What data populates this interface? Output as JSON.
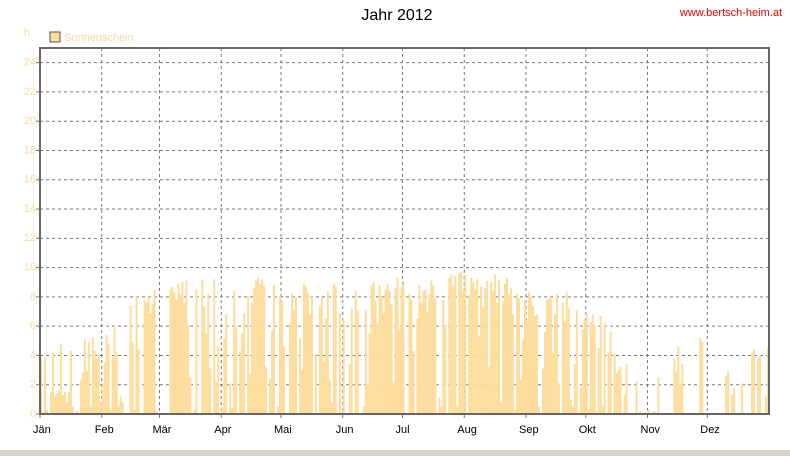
{
  "chart_data": {
    "type": "bar",
    "title": "Jahr 2012",
    "source": "www.bertsch-heim.at",
    "y_label": "h",
    "categories": [
      "Jän",
      null,
      null,
      null,
      null,
      null,
      null,
      null,
      null,
      null,
      null,
      null,
      null,
      null,
      null,
      null,
      null,
      null,
      null,
      null,
      null,
      null,
      null,
      null,
      null,
      null,
      null,
      null,
      null,
      null,
      null,
      "Feb",
      null,
      null,
      null,
      null,
      null,
      null,
      null,
      null,
      null,
      null,
      null,
      null,
      null,
      null,
      null,
      null,
      null,
      null,
      null,
      null,
      null,
      null,
      null,
      null,
      null,
      null,
      null,
      null,
      "Mär",
      null,
      null,
      null,
      null,
      null,
      null,
      null,
      null,
      null,
      null,
      null,
      null,
      null,
      null,
      null,
      null,
      null,
      null,
      null,
      null,
      null,
      null,
      null,
      null,
      null,
      null,
      null,
      null,
      null,
      null,
      "Apr",
      null,
      null,
      null,
      null,
      null,
      null,
      null,
      null,
      null,
      null,
      null,
      null,
      null,
      null,
      null,
      null,
      null,
      null,
      null,
      null,
      null,
      null,
      null,
      null,
      null,
      null,
      null,
      null,
      null,
      "Mai",
      null,
      null,
      null,
      null,
      null,
      null,
      null,
      null,
      null,
      null,
      null,
      null,
      null,
      null,
      null,
      null,
      null,
      null,
      null,
      null,
      null,
      null,
      null,
      null,
      null,
      null,
      null,
      null,
      null,
      null,
      "Jun",
      null,
      null,
      null,
      null,
      null,
      null,
      null,
      null,
      null,
      null,
      null,
      null,
      null,
      null,
      null,
      null,
      null,
      null,
      null,
      null,
      null,
      null,
      null,
      null,
      null,
      null,
      null,
      null,
      null,
      "Jul",
      null,
      null,
      null,
      null,
      null,
      null,
      null,
      null,
      null,
      null,
      null,
      null,
      null,
      null,
      null,
      null,
      null,
      null,
      null,
      null,
      null,
      null,
      null,
      null,
      null,
      null,
      null,
      null,
      null,
      null,
      "Aug",
      null,
      null,
      null,
      null,
      null,
      null,
      null,
      null,
      null,
      null,
      null,
      null,
      null,
      null,
      null,
      null,
      null,
      null,
      null,
      null,
      null,
      null,
      null,
      null,
      null,
      null,
      null,
      null,
      null,
      null,
      "Sep",
      null,
      null,
      null,
      null,
      null,
      null,
      null,
      null,
      null,
      null,
      null,
      null,
      null,
      null,
      null,
      null,
      null,
      null,
      null,
      null,
      null,
      null,
      null,
      null,
      null,
      null,
      null,
      null,
      null,
      "Okt",
      null,
      null,
      null,
      null,
      null,
      null,
      null,
      null,
      null,
      null,
      null,
      null,
      null,
      null,
      null,
      null,
      null,
      null,
      null,
      null,
      null,
      null,
      null,
      null,
      null,
      null,
      null,
      null,
      null,
      null,
      "Nov",
      null,
      null,
      null,
      null,
      null,
      null,
      null,
      null,
      null,
      null,
      null,
      null,
      null,
      null,
      null,
      null,
      null,
      null,
      null,
      null,
      null,
      null,
      null,
      null,
      null,
      null,
      null,
      null,
      null,
      "Dez",
      null,
      null,
      null,
      null,
      null,
      null,
      null,
      null,
      null,
      null,
      null,
      null,
      null,
      null,
      null,
      null,
      null,
      null,
      null,
      null,
      null,
      null,
      null,
      null,
      null,
      null,
      null,
      null,
      null,
      null
    ],
    "series": [
      {
        "name": "Sonnenschein",
        "color": "#fddc9c",
        "values": [
          3.8,
          0,
          3.9,
          0.3,
          0,
          1.5,
          4.2,
          1.2,
          1.4,
          1.6,
          4.8,
          1.3,
          1.5,
          0.8,
          1.5,
          4.3,
          0.5,
          0,
          0.2,
          0,
          2.3,
          2.8,
          5.1,
          2.9,
          4.9,
          0.5,
          5.2,
          4.3,
          3.8,
          4.1,
          0.8,
          2.1,
          3.5,
          5.4,
          4.8,
          0.3,
          3.9,
          6.0,
          4.2,
          0.5,
          1.2,
          0.8,
          0,
          0,
          0,
          7.4,
          4.9,
          0.3,
          8.1,
          4.4,
          0,
          0,
          7.8,
          7.6,
          8.0,
          6.9,
          7.5,
          8.5,
          0.2,
          0,
          0,
          0,
          0,
          0,
          0,
          8.5,
          8.7,
          8.3,
          7.8,
          8.9,
          8.2,
          9.0,
          7.6,
          9.1,
          6.1,
          2.5,
          0,
          0.3,
          8.5,
          0,
          0,
          9.2,
          7.3,
          5.5,
          8.2,
          3.1,
          0,
          9.2,
          2.2,
          4.6,
          0,
          0.5,
          5.2,
          6.8,
          0,
          2.1,
          0.4,
          8.4,
          6.0,
          0,
          4.3,
          5.5,
          6.9,
          0,
          8.1,
          2.7,
          7.6,
          8.6,
          9.1,
          9.3,
          8.9,
          9.2,
          8.8,
          3.2,
          0,
          2.4,
          5.7,
          8.8,
          0,
          0.5,
          8.1,
          7.7,
          4.6,
          0,
          0,
          6.2,
          8.2,
          7.1,
          8.0,
          0,
          5.2,
          3.0,
          8.9,
          8.7,
          8.3,
          6.8,
          8.1,
          0,
          4.1,
          0,
          7.4,
          7.9,
          3.6,
          6.5,
          8.4,
          2.3,
          0.8,
          8.9,
          8.7,
          0,
          6.9,
          0.2,
          6.5,
          0,
          0,
          3.4,
          7.2,
          0,
          8.4,
          7.1,
          0,
          0,
          0.5,
          7.1,
          2.0,
          5.5,
          8.8,
          9.0,
          7.7,
          6.2,
          8.8,
          8.1,
          6.9,
          8.5,
          8.9,
          8.4,
          7.5,
          2.1,
          8.6,
          9.3,
          5.8,
          8.7,
          9.1,
          0,
          0,
          8.2,
          7.8,
          4.3,
          0,
          6.5,
          8.8,
          7.6,
          8.4,
          8.5,
          7.0,
          8.2,
          9.1,
          8.8,
          7.9,
          0,
          1.1,
          0.5,
          7.8,
          6.1,
          0,
          9.3,
          9.5,
          8.7,
          9.4,
          0.5,
          9.6,
          9.7,
          8.4,
          9.5,
          0,
          8.1,
          9.3,
          9.0,
          8.5,
          9.2,
          5.3,
          8.7,
          7.3,
          8.6,
          9.1,
          3.2,
          9.0,
          8.4,
          9.5,
          7.6,
          9.2,
          0.8,
          7.7,
          8.9,
          9.3,
          8.2,
          8.6,
          6.8,
          0.3,
          8.2,
          7.9,
          2.3,
          5.1,
          7.8,
          6.4,
          8.3,
          8.0,
          7.4,
          6.7,
          6.8,
          0.5,
          0,
          3.1,
          5.6,
          7.8,
          7.9,
          8.0,
          4.2,
          6.8,
          8.2,
          2.1,
          0,
          7.6,
          6.3,
          8.3,
          7.2,
          1.0,
          0.5,
          3.4,
          7.1,
          0,
          1.8,
          5.8,
          6.5,
          6.9,
          0.3,
          6.3,
          6.8,
          6.1,
          0.2,
          4.5,
          6.7,
          0.5,
          6.2,
          0,
          4.2,
          5.6,
          0,
          4.1,
          2.8,
          3.0,
          3.2,
          0,
          1.3,
          3.4,
          0,
          0,
          0,
          0,
          2.2,
          0,
          0.2,
          0,
          0,
          0,
          0.3,
          0,
          0.1,
          0.2,
          0,
          2.5,
          0,
          0,
          0,
          0,
          0,
          0,
          0,
          3.8,
          2.9,
          4.6,
          2.1,
          3.4,
          0,
          0,
          0,
          0,
          0,
          0,
          0,
          0,
          5.2,
          4.9,
          0,
          0,
          0,
          0,
          0,
          0,
          0,
          0,
          0,
          0,
          0,
          2.6,
          2.9,
          0,
          1.3,
          1.8,
          0,
          0,
          0,
          2.1,
          0,
          0,
          0,
          0,
          4.2,
          4.4,
          0,
          3.8,
          4.0,
          0,
          0,
          1.2,
          4.5
        ]
      }
    ],
    "ylim": [
      0,
      25
    ],
    "yticks": [
      0,
      2,
      4,
      6,
      8,
      10,
      12,
      14,
      16,
      18,
      20,
      22,
      24
    ],
    "grid": true
  }
}
